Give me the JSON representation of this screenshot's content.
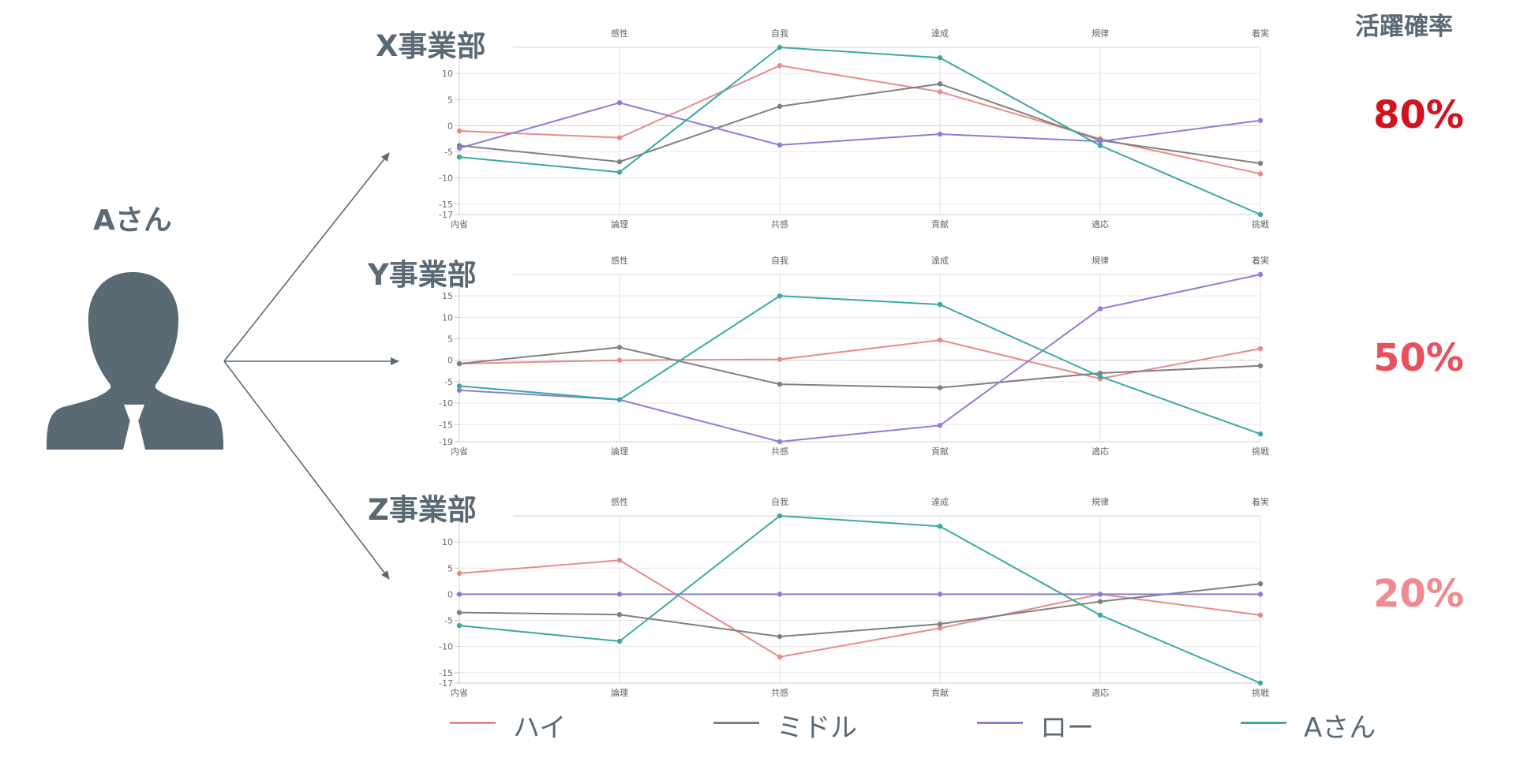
{
  "person": {
    "label": "Aさん"
  },
  "rate_header": "活躍確率",
  "legend": [
    {
      "name": "ハイ",
      "color": "#e88a8a"
    },
    {
      "name": "ミドル",
      "color": "#808080"
    },
    {
      "name": "ロー",
      "color": "#8a7fd6"
    },
    {
      "name": "Aさん",
      "color": "#3aaaa0"
    }
  ],
  "rates": [
    {
      "value": "80%",
      "color": "#d2121e"
    },
    {
      "value": "50%",
      "color": "#e8505e"
    },
    {
      "value": "20%",
      "color": "#f08a90"
    }
  ],
  "chart_data": [
    {
      "type": "line",
      "title": "X事業部",
      "top_labels": [
        "感性",
        "自我",
        "達成",
        "規律",
        "着実"
      ],
      "categories": [
        "内省",
        "論理",
        "共感",
        "貢献",
        "適応",
        "挑戦"
      ],
      "y_ticks": [
        10,
        5,
        0,
        -5,
        -10,
        -15,
        -17
      ],
      "ylim": [
        -17,
        15
      ],
      "grid": true,
      "series": [
        {
          "name": "ハイ",
          "color": "#e88a8a",
          "values": [
            -1,
            -2.3,
            11.5,
            6.5,
            -2.5,
            -9.2
          ]
        },
        {
          "name": "ミドル",
          "color": "#808080",
          "values": [
            -3.8,
            -6.9,
            3.7,
            8,
            -2.8,
            -7.2
          ]
        },
        {
          "name": "ロー",
          "color": "#8a7fd6",
          "values": [
            -4.3,
            4.4,
            -3.7,
            -1.6,
            -3,
            1
          ]
        },
        {
          "name": "Aさん",
          "color": "#3aaaa0",
          "values": [
            -6,
            -8.9,
            15,
            13,
            -3.8,
            -17
          ]
        }
      ]
    },
    {
      "type": "line",
      "title": "Y事業部",
      "top_labels": [
        "感性",
        "自我",
        "達成",
        "規律",
        "着実"
      ],
      "categories": [
        "内省",
        "論理",
        "共感",
        "貢献",
        "適応",
        "挑戦"
      ],
      "y_ticks": [
        15,
        10,
        5,
        0,
        -5,
        -10,
        -15,
        -19
      ],
      "ylim": [
        -19,
        20
      ],
      "grid": true,
      "series": [
        {
          "name": "ハイ",
          "color": "#e88a8a",
          "values": [
            -0.8,
            0,
            0.2,
            4.7,
            -4.3,
            2.7
          ]
        },
        {
          "name": "ミドル",
          "color": "#808080",
          "values": [
            -0.8,
            3,
            -5.6,
            -6.4,
            -3,
            -1.3
          ]
        },
        {
          "name": "ロー",
          "color": "#8a7fd6",
          "values": [
            -7,
            -9.2,
            -19,
            -15.2,
            12,
            20
          ]
        },
        {
          "name": "Aさん",
          "color": "#3aaaa0",
          "values": [
            -6,
            -9.2,
            15,
            13,
            -3.8,
            -17.2
          ]
        }
      ]
    },
    {
      "type": "line",
      "title": "Z事業部",
      "top_labels": [
        "感性",
        "自我",
        "達成",
        "規律",
        "着実"
      ],
      "categories": [
        "内省",
        "論理",
        "共感",
        "貢献",
        "適応",
        "挑戦"
      ],
      "y_ticks": [
        10,
        5,
        0,
        -5,
        -10,
        -15,
        -17
      ],
      "ylim": [
        -17,
        15
      ],
      "grid": true,
      "series": [
        {
          "name": "ハイ",
          "color": "#e88a8a",
          "values": [
            4,
            6.5,
            -12,
            -6.5,
            0,
            -4
          ]
        },
        {
          "name": "ミドル",
          "color": "#808080",
          "values": [
            -3.5,
            -3.9,
            -8.1,
            -5.7,
            -1.4,
            2
          ]
        },
        {
          "name": "ロー",
          "color": "#8a7fd6",
          "values": [
            0,
            0,
            0,
            0,
            0,
            0
          ]
        },
        {
          "name": "Aさん",
          "color": "#3aaaa0",
          "values": [
            -6,
            -9,
            15,
            13,
            -4,
            -17
          ]
        }
      ]
    }
  ]
}
